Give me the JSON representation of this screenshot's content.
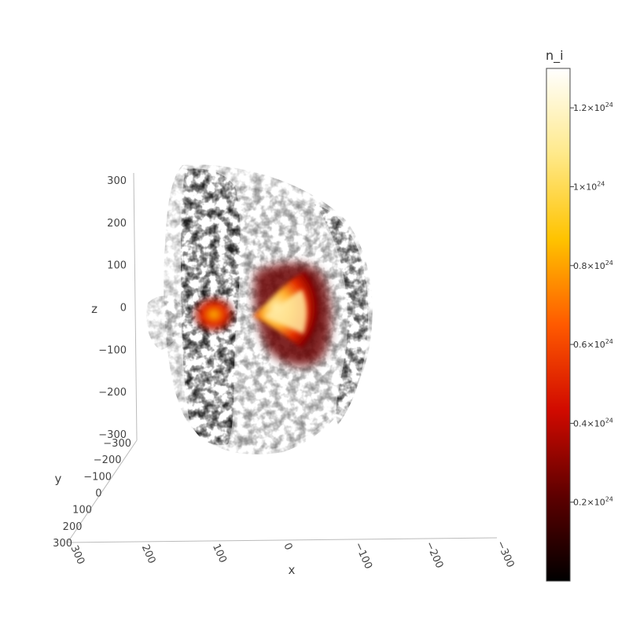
{
  "chart_data": {
    "type": "volume",
    "variable": "n_i",
    "colorscale": "hot",
    "colorbar": {
      "title": "n_i",
      "min": 0,
      "max": 1.3e+24,
      "ticks": [
        {
          "value": 2e+23,
          "mant": "0.2",
          "exp": "24"
        },
        {
          "value": 4e+23,
          "mant": "0.4",
          "exp": "24"
        },
        {
          "value": 6e+23,
          "mant": "0.6",
          "exp": "24"
        },
        {
          "value": 8e+23,
          "mant": "0.8",
          "exp": "24"
        },
        {
          "value": 1e+24,
          "mant": "1",
          "exp": "24"
        },
        {
          "value": 1.2e+24,
          "mant": "1.2",
          "exp": "24"
        }
      ],
      "colors": [
        "#000000",
        "#5e0000",
        "#d10a00",
        "#ff5a00",
        "#ffc300",
        "#ffe98a",
        "#ffffff"
      ]
    },
    "axes": {
      "x": {
        "label": "x",
        "range": [
          300,
          -300
        ],
        "ticks": [
          "300",
          "200",
          "100",
          "0",
          "−100",
          "−200",
          "−300"
        ]
      },
      "y": {
        "label": "y",
        "range": [
          -300,
          300
        ],
        "ticks": [
          "−300",
          "−200",
          "−100",
          "0",
          "100",
          "200",
          "300"
        ]
      },
      "z": {
        "label": "z",
        "range": [
          -300,
          300
        ],
        "ticks": [
          "300",
          "200",
          "100",
          "0",
          "−100",
          "−200",
          "−300"
        ]
      }
    }
  }
}
